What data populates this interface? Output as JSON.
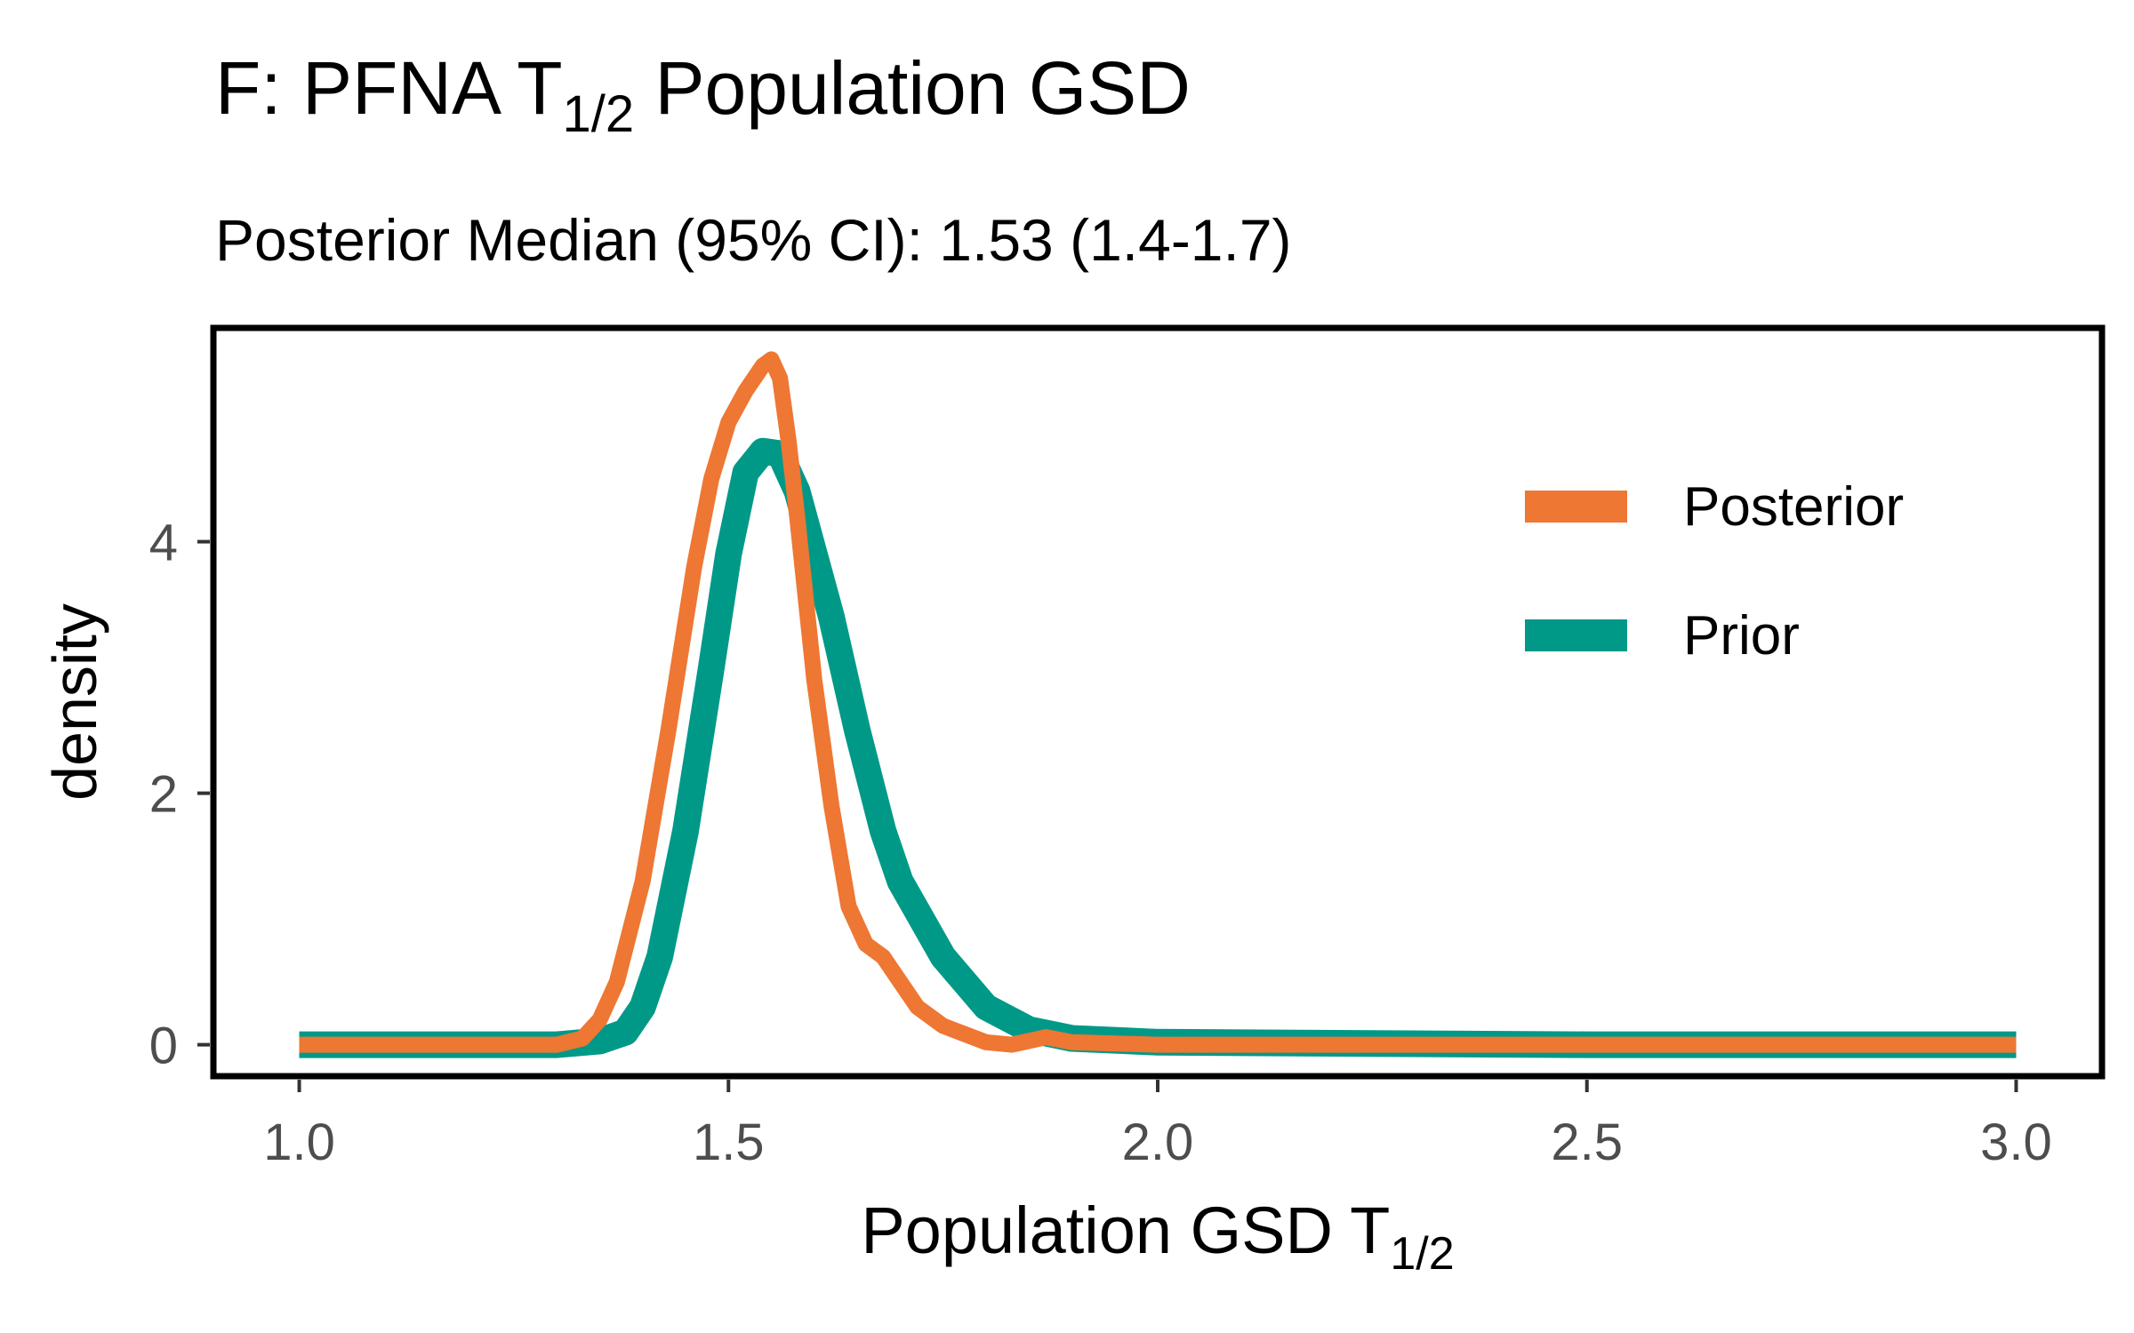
{
  "chart_data": {
    "type": "line",
    "title": "F: PFNA T",
    "title_subscript": "1/2",
    "title_suffix": " Population GSD",
    "subtitle": "Posterior Median (95% CI): 1.53 (1.4-1.7)",
    "xlabel": "Population GSD T",
    "xlabel_subscript": "1/2",
    "ylabel": "density",
    "xlim": [
      0.9,
      3.1
    ],
    "ylim": [
      -0.25,
      5.7
    ],
    "x_ticks": [
      1.0,
      1.5,
      2.0,
      2.5,
      3.0
    ],
    "x_tick_labels": [
      "1.0",
      "1.5",
      "2.0",
      "2.5",
      "3.0"
    ],
    "y_ticks": [
      0,
      2,
      4
    ],
    "y_tick_labels": [
      "0",
      "2",
      "4"
    ],
    "grid": false,
    "legend_position": "top-right",
    "series": [
      {
        "name": "Prior",
        "color": "#009988",
        "x": [
          1.0,
          1.3,
          1.35,
          1.38,
          1.4,
          1.42,
          1.45,
          1.48,
          1.5,
          1.52,
          1.54,
          1.56,
          1.58,
          1.6,
          1.62,
          1.65,
          1.68,
          1.7,
          1.75,
          1.8,
          1.85,
          1.9,
          2.0,
          2.5,
          3.0
        ],
        "values": [
          0,
          0,
          0.03,
          0.1,
          0.3,
          0.7,
          1.7,
          3.0,
          3.9,
          4.55,
          4.72,
          4.7,
          4.4,
          3.9,
          3.4,
          2.5,
          1.7,
          1.3,
          0.7,
          0.3,
          0.12,
          0.05,
          0.02,
          0,
          0
        ]
      },
      {
        "name": "Posterior",
        "color": "#EE7733",
        "x": [
          1.0,
          1.3,
          1.33,
          1.35,
          1.37,
          1.4,
          1.43,
          1.46,
          1.48,
          1.5,
          1.52,
          1.54,
          1.55,
          1.56,
          1.57,
          1.58,
          1.6,
          1.62,
          1.64,
          1.66,
          1.68,
          1.7,
          1.72,
          1.75,
          1.8,
          1.83,
          1.87,
          1.9,
          2.0,
          2.5,
          3.0
        ],
        "values": [
          0,
          0,
          0.05,
          0.2,
          0.5,
          1.3,
          2.5,
          3.8,
          4.5,
          4.95,
          5.2,
          5.4,
          5.45,
          5.3,
          4.8,
          4.2,
          2.9,
          1.9,
          1.1,
          0.8,
          0.7,
          0.5,
          0.3,
          0.15,
          0.02,
          0.0,
          0.06,
          0.02,
          0,
          0,
          0
        ]
      }
    ]
  }
}
